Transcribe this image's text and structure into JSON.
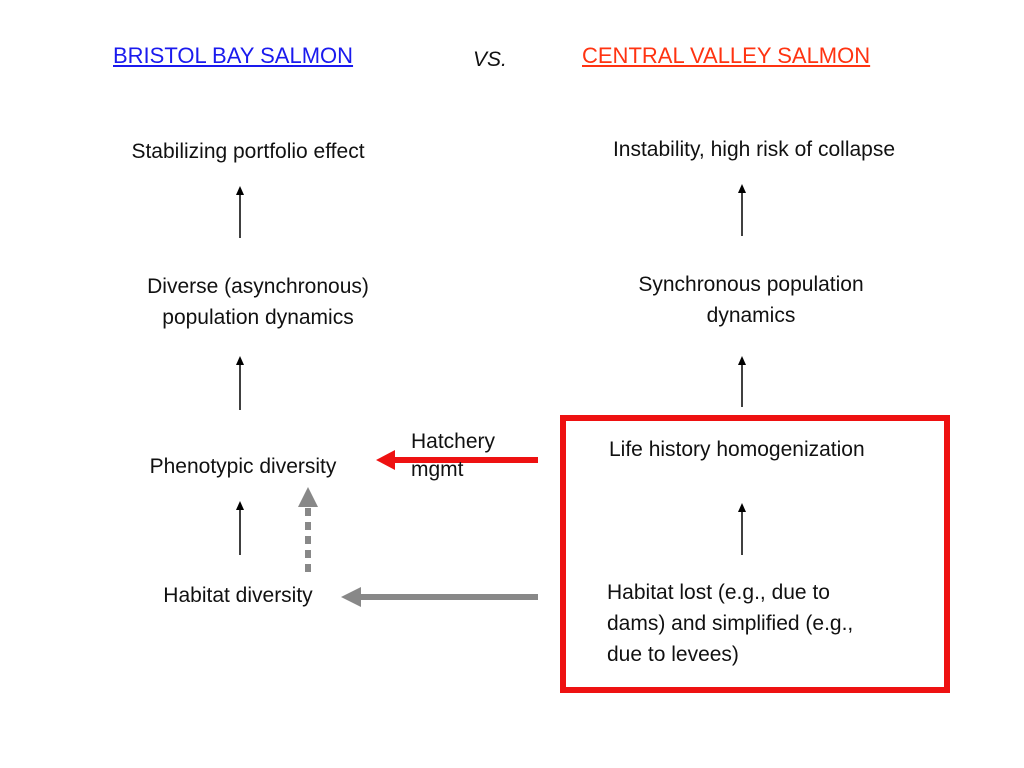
{
  "header": {
    "left_title": "BRISTOL BAY SALMON",
    "vs": "VS.",
    "right_title": "CENTRAL VALLEY SALMON"
  },
  "bristol_bay": {
    "outcome": "Stabilizing portfolio effect",
    "dynamics_line1": "Diverse (asynchronous)",
    "dynamics_line2": "population dynamics",
    "phenotype": "Phenotypic diversity",
    "habitat": "Habitat diversity"
  },
  "central_valley": {
    "outcome": "Instability, high risk of collapse",
    "dynamics_line1": "Synchronous population",
    "dynamics_line2": "dynamics",
    "life_history": "Life history homogenization",
    "habitat_line1": "Habitat lost (e.g., due to",
    "habitat_line2": "dams) and simplified (e.g.,",
    "habitat_line3": "due to levees)"
  },
  "connector": {
    "hatchery_line1": "Hatchery",
    "hatchery_line2": "mgmt"
  },
  "colors": {
    "left_title": "#1a1aee",
    "right_title": "#ff3311",
    "highlight_box": "#ee1111",
    "hatchery_arrow": "#ee1111",
    "habitat_arrow": "#888888",
    "dotted_arrow": "#888888",
    "flow_arrow": "#000000"
  }
}
